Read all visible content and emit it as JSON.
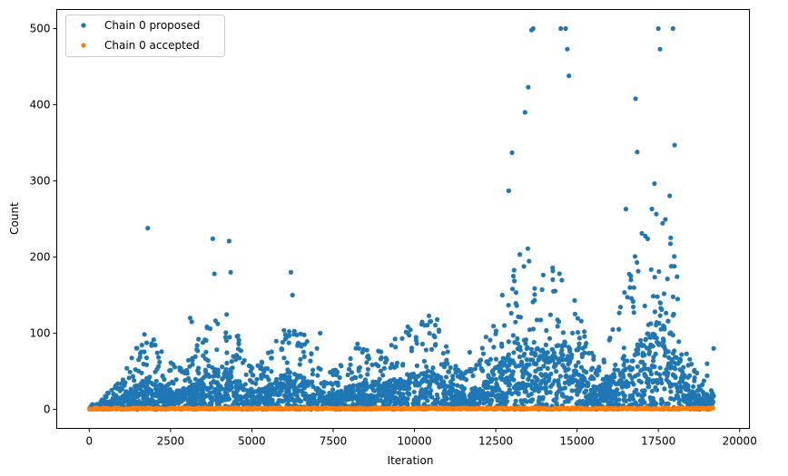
{
  "chart_data": {
    "type": "scatter",
    "xlabel": "Iteration",
    "ylabel": "Count",
    "xlim": [
      -1000,
      20300
    ],
    "ylim": [
      -25,
      525
    ],
    "xticks": [
      0,
      2500,
      5000,
      7500,
      10000,
      12500,
      15000,
      17500,
      20000
    ],
    "xtick_labels": [
      "0",
      "2500",
      "5000",
      "7500",
      "10000",
      "12500",
      "15000",
      "17500",
      "20000"
    ],
    "yticks": [
      0,
      100,
      200,
      300,
      400,
      500
    ],
    "ytick_labels": [
      "0",
      "100",
      "200",
      "300",
      "400",
      "500"
    ],
    "legend_position": "top-left",
    "grid": false,
    "series": [
      {
        "name": "Chain 0 proposed",
        "color": "#1f77b4",
        "x": [
          1800,
          3100,
          3150,
          3800,
          3850,
          4300,
          4350,
          6200,
          6250,
          7100,
          7000,
          8300,
          8400,
          9800,
          10700,
          11700,
          12200,
          12700,
          12900,
          13000,
          13400,
          13500,
          13600,
          13650,
          14500,
          14650,
          14700,
          14750,
          16500,
          16800,
          16850,
          17500,
          17550,
          17950,
          18000,
          19000,
          19200
        ],
        "values": [
          238,
          120,
          115,
          224,
          178,
          221,
          180,
          180,
          150,
          100,
          80,
          80,
          75,
          100,
          118,
          75,
          95,
          150,
          287,
          337,
          390,
          423,
          498,
          500,
          500,
          500,
          473,
          438,
          263,
          408,
          338,
          500,
          473,
          500,
          347,
          60,
          80
        ]
      },
      {
        "name": "Chain 0 accepted",
        "color": "#ff7f0e",
        "x": [
          0,
          19200
        ],
        "values": [
          1,
          1
        ]
      }
    ]
  }
}
